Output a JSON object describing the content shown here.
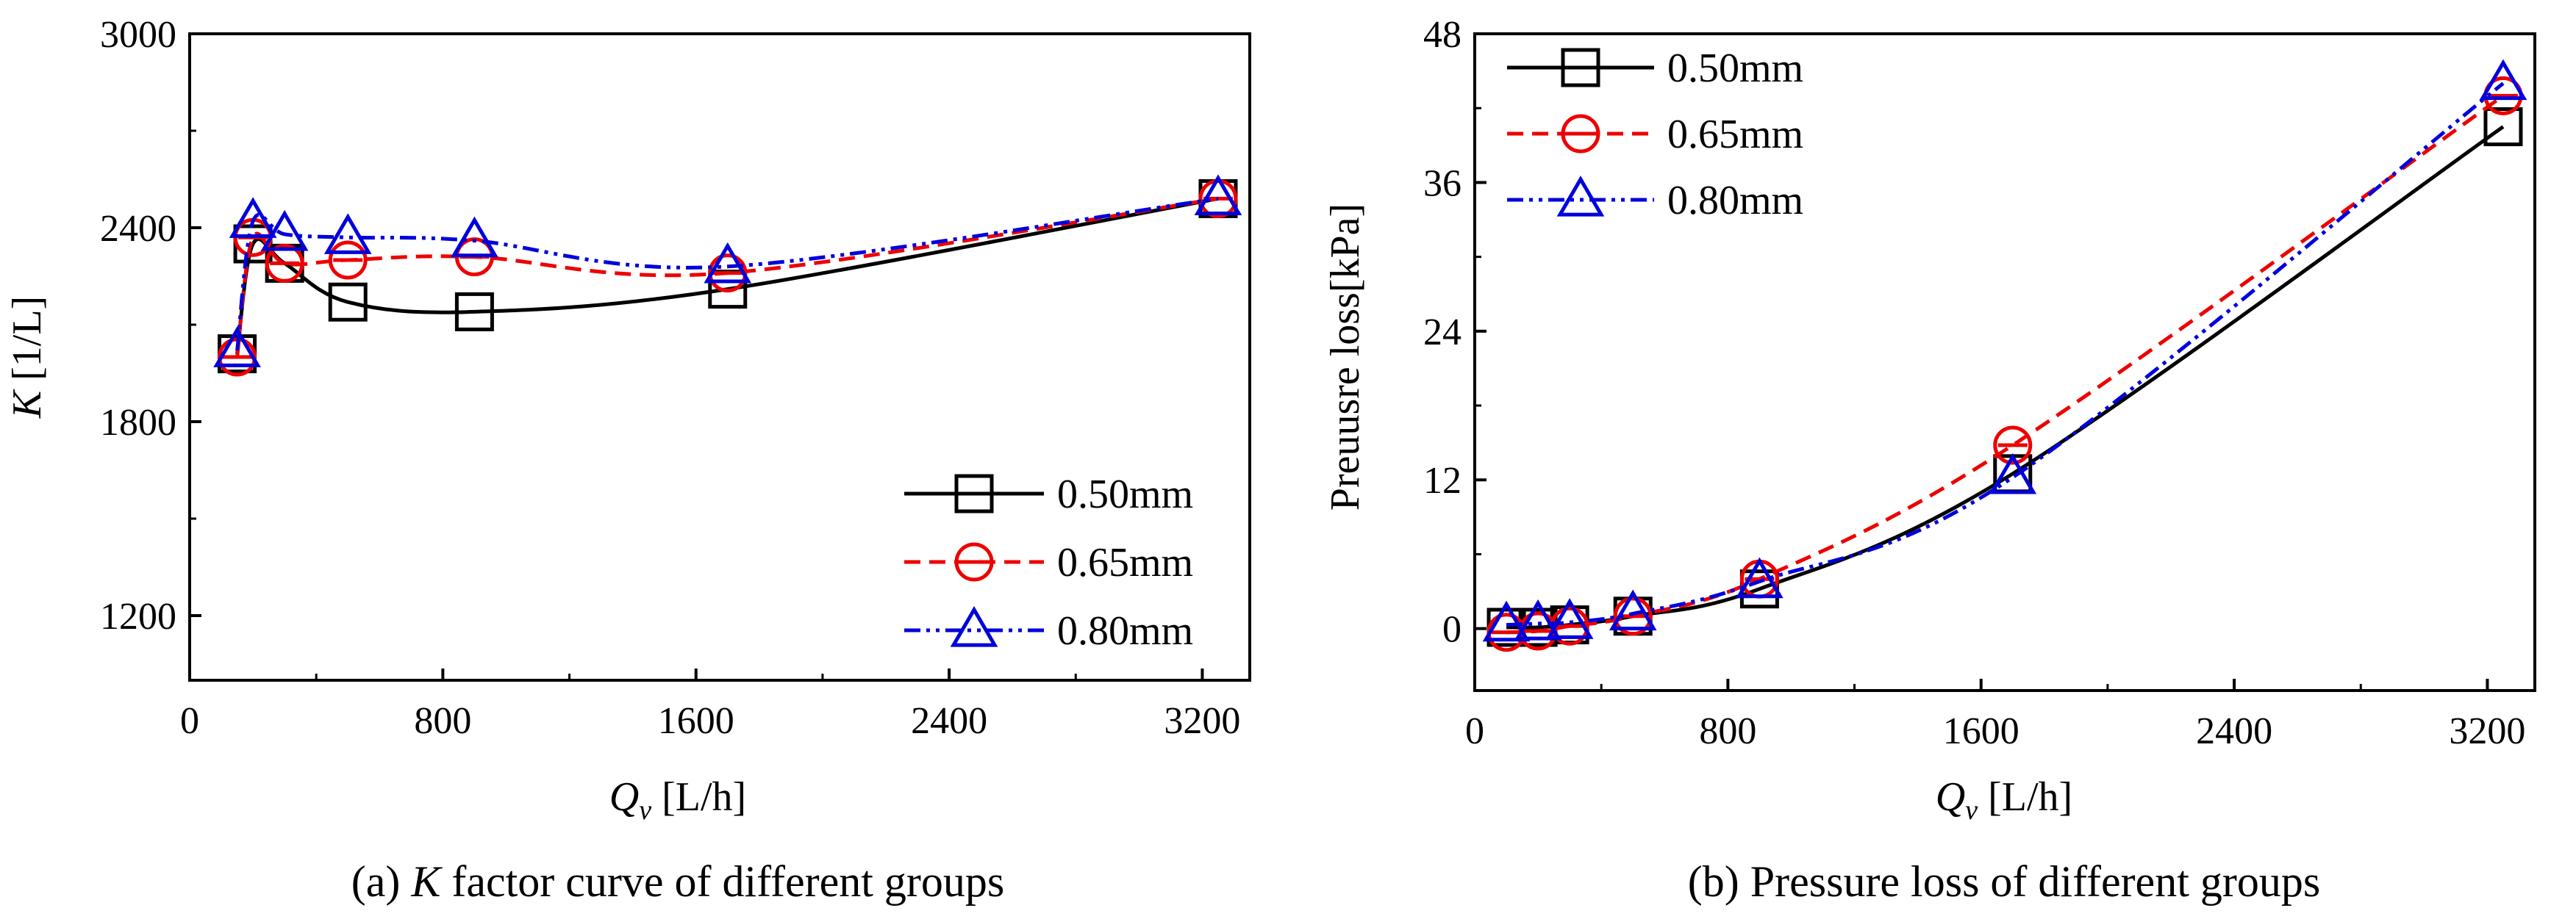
{
  "chart_data": [
    {
      "type": "line",
      "caption_prefix": "(a) ",
      "caption_italic": "K",
      "caption_rest": " factor curve of different groups",
      "ylabel_italic": "K",
      "ylabel_rest": " [1/L]",
      "xlabel_italic": "Q",
      "xlabel_sub": "v",
      "xlabel_rest": " [L/h]",
      "xlim": [
        0,
        3350
      ],
      "ylim": [
        1000,
        3000
      ],
      "xticks": [
        0,
        800,
        1600,
        2400,
        3200
      ],
      "yticks": [
        1200,
        1800,
        2400,
        3000
      ],
      "legend_position": "lower-right",
      "series": [
        {
          "name": "0.50mm",
          "color": "#000000",
          "marker": "square",
          "dash": "",
          "x": [
            150,
            200,
            300,
            500,
            900,
            1700,
            3250
          ],
          "y": [
            2010,
            2350,
            2290,
            2170,
            2140,
            2210,
            2490
          ]
        },
        {
          "name": "0.65mm",
          "color": "#ee0000",
          "marker": "circle",
          "dash": "22 12",
          "x": [
            150,
            200,
            300,
            500,
            900,
            1700,
            3250
          ],
          "y": [
            2000,
            2370,
            2290,
            2300,
            2310,
            2260,
            2490
          ]
        },
        {
          "name": "0.80mm",
          "color": "#0000dd",
          "marker": "triangle",
          "dash": "22 8 5 8 5 8",
          "x": [
            150,
            200,
            300,
            500,
            900,
            1700,
            3250
          ],
          "y": [
            2020,
            2420,
            2380,
            2370,
            2360,
            2280,
            2490
          ]
        }
      ]
    },
    {
      "type": "line",
      "caption": "(b) Pressure loss of different groups",
      "ylabel": "Preuusre loss[kPa]",
      "xlabel_italic": "Q",
      "xlabel_sub": "v",
      "xlabel_rest": " [L/h]",
      "xlim": [
        0,
        3350
      ],
      "ylim": [
        -5,
        48
      ],
      "xticks": [
        0,
        800,
        1600,
        2400,
        3200
      ],
      "yticks": [
        0,
        12,
        24,
        36,
        48
      ],
      "legend_position": "top-left",
      "series": [
        {
          "name": "0.50mm",
          "color": "#000000",
          "marker": "square",
          "dash": "",
          "x": [
            100,
            200,
            300,
            500,
            900,
            1700,
            3250
          ],
          "y": [
            0.1,
            0.1,
            0.3,
            1.0,
            3.2,
            12.5,
            40.5
          ]
        },
        {
          "name": "0.65mm",
          "color": "#ee0000",
          "marker": "circle",
          "dash": "22 12",
          "x": [
            100,
            200,
            300,
            500,
            900,
            1700,
            3250
          ],
          "y": [
            -0.3,
            -0.2,
            0.2,
            1.0,
            4.0,
            14.8,
            43.0
          ]
        },
        {
          "name": "0.80mm",
          "color": "#0000dd",
          "marker": "triangle",
          "dash": "22 8 5 8 5 8",
          "x": [
            100,
            200,
            300,
            500,
            900,
            1700,
            3250
          ],
          "y": [
            0.3,
            0.4,
            0.5,
            1.2,
            3.8,
            12.2,
            44.0
          ]
        }
      ]
    }
  ]
}
